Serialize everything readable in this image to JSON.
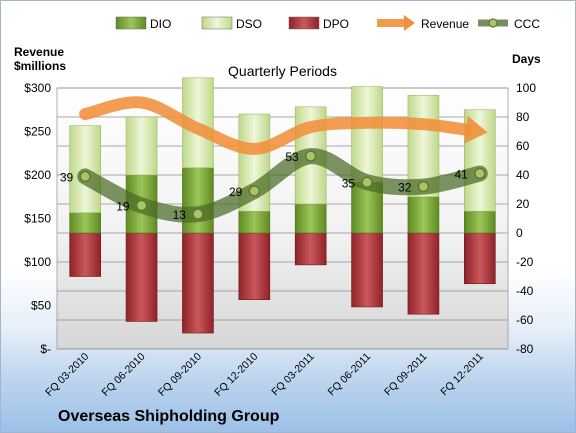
{
  "chart_data": {
    "type": "bar",
    "title": "Quarterly Periods",
    "company": "Overseas Shipholding Group",
    "y_left_label": [
      "Revenue",
      "$millions"
    ],
    "y_right_label": "Days",
    "y_left_range": [
      0,
      300
    ],
    "y_left_ticks": [
      "$-",
      "$50",
      "$100",
      "$150",
      "$200",
      "$250",
      "$300"
    ],
    "y_right_range": [
      -80,
      100
    ],
    "y_right_ticks": [
      "-80",
      "-60",
      "-40",
      "-20",
      "0",
      "20",
      "40",
      "60",
      "80",
      "100"
    ],
    "categories": [
      "FQ 03-2010",
      "FQ 06-2010",
      "FQ 09-2010",
      "FQ 12-2010",
      "FQ 03-2011",
      "FQ 06-2011",
      "FQ 09-2011",
      "FQ 12-2011"
    ],
    "legend": [
      {
        "name": "DIO",
        "color": "#77a032"
      },
      {
        "name": "DSO",
        "color": "#d3e6a6"
      },
      {
        "name": "DPO",
        "color": "#a8343a"
      },
      {
        "name": "Revenue",
        "color": "#f0903a"
      },
      {
        "name": "CCC",
        "color": "#556b2f"
      }
    ],
    "series": [
      {
        "name": "DIO",
        "values": [
          14,
          40,
          45,
          15,
          20,
          35,
          25,
          15
        ]
      },
      {
        "name": "DSO",
        "values": [
          60,
          40,
          62,
          67,
          67,
          66,
          70,
          70
        ]
      },
      {
        "name": "DPO",
        "values": [
          -30,
          -61,
          -69,
          -46,
          -22,
          -51,
          -56,
          -35
        ]
      },
      {
        "name": "Revenue",
        "values": [
          82,
          90,
          72,
          58,
          73,
          76,
          75,
          70
        ]
      },
      {
        "name": "CCC",
        "values": [
          39,
          19,
          13,
          29,
          53,
          35,
          32,
          41
        ]
      }
    ],
    "ccc_labels": [
      "39",
      "19",
      "13",
      "29",
      "53",
      "35",
      "32",
      "41"
    ],
    "grid": true,
    "legend_position": "top"
  }
}
